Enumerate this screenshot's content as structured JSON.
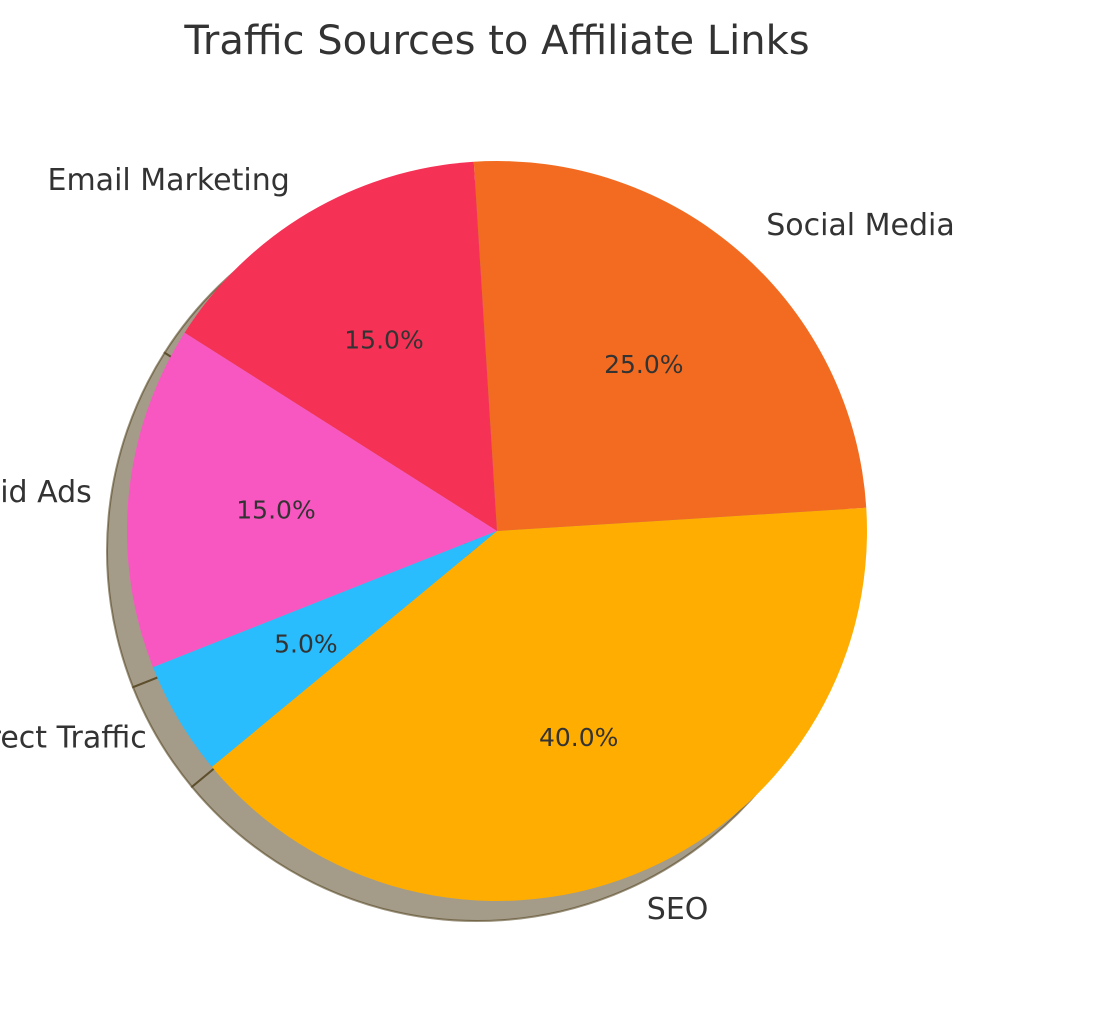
{
  "chart_data": {
    "type": "pie",
    "title": "Traffic Sources to Affiliate Links",
    "categories": [
      "SEO",
      "Social Media",
      "Email Marketing",
      "Paid Ads",
      "Direct Traffic"
    ],
    "values": [
      40,
      25,
      15,
      15,
      5
    ],
    "percent_labels": [
      "40.0%",
      "25.0%",
      "15.0%",
      "15.0%",
      "5.0%"
    ],
    "colors": [
      "#FFAD00",
      "#F26B21",
      "#F53255",
      "#F857C1",
      "#29BDFD"
    ],
    "shadow": true,
    "legend": "none"
  }
}
